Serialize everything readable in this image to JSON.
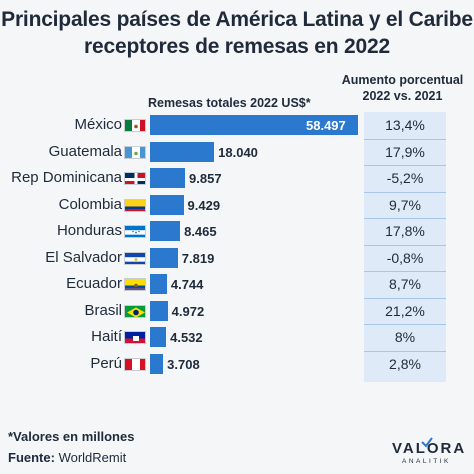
{
  "title": {
    "line1": "Principales países de América Latina y el Caribe",
    "line2": "receptores de remesas en 2022"
  },
  "left_header": "Remesas totales 2022 US$*",
  "right_header": {
    "line1": "Aumento porcentual",
    "line2": "2022 vs. 2021"
  },
  "footnote": "*Valores en millones",
  "source": {
    "label": "Fuente:",
    "value": "WorldRemit"
  },
  "logo": {
    "name": "VALORA",
    "sub": "ANALITIK"
  },
  "colors": {
    "bar": "#2b78cf",
    "panel": "#dfeaf8"
  },
  "chart_data": {
    "type": "bar",
    "orientation": "horizontal",
    "categories": [
      "México",
      "Guatemala",
      "Rep Dominicana",
      "Colombia",
      "Honduras",
      "El Salvador",
      "Ecuador",
      "Brasil",
      "Haití",
      "Perú"
    ],
    "values": [
      58497,
      18040,
      9857,
      9429,
      8465,
      7819,
      4744,
      4972,
      4532,
      3708
    ],
    "value_labels": [
      "58.497",
      "18.040",
      "9.857",
      "9.429",
      "8.465",
      "7.819",
      "4.744",
      "4.972",
      "4.532",
      "3.708"
    ],
    "change_labels": [
      "13,4%",
      "17,9%",
      "-5,2%",
      "9,7%",
      "17,8%",
      "-0,8%",
      "8,7%",
      "21,2%",
      "8%",
      "2,8%"
    ],
    "change_values": [
      13.4,
      17.9,
      -5.2,
      9.7,
      17.8,
      -0.8,
      8.7,
      21.2,
      8,
      2.8
    ],
    "flags": [
      "mexico-flag-icon",
      "guatemala-flag-icon",
      "dominican-republic-flag-icon",
      "colombia-flag-icon",
      "honduras-flag-icon",
      "el-salvador-flag-icon",
      "ecuador-flag-icon",
      "brazil-flag-icon",
      "haiti-flag-icon",
      "peru-flag-icon"
    ],
    "xlim": [
      0,
      58497
    ],
    "grid": false
  }
}
